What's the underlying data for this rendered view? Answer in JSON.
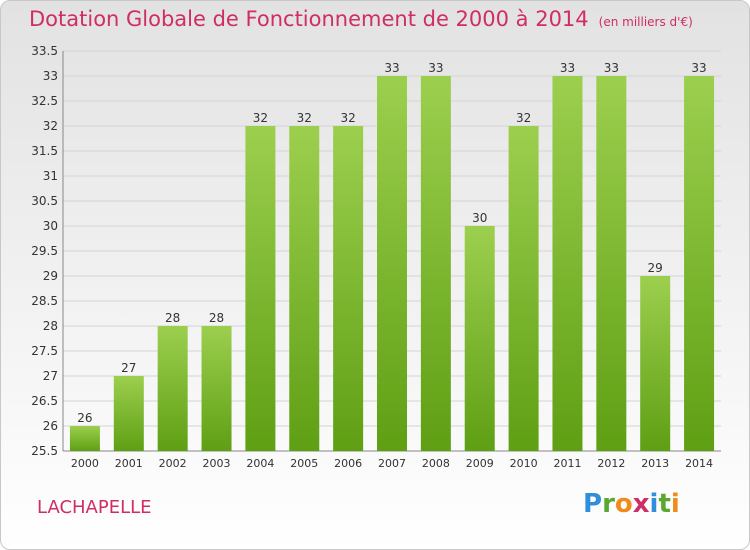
{
  "title": "Dotation Globale de Fonctionnement de 2000 à 2014",
  "unit": "(en milliers d'€)",
  "footer": "LACHAPELLE",
  "logo": {
    "letters": [
      "P",
      "r",
      "o",
      "x",
      "i",
      "t",
      "i"
    ],
    "colors": [
      "#2f8fd8",
      "#5aa832",
      "#f08b1c",
      "#d02c66",
      "#2f8fd8",
      "#5aa832",
      "#f08b1c"
    ]
  },
  "colors": {
    "title": "#d02c66",
    "bar_light": "#9ccf4e",
    "bar_dark": "#5f9f14",
    "grid": "#d4d4d4",
    "text": "#333333"
  },
  "chart_data": {
    "type": "bar",
    "categories": [
      "2000",
      "2001",
      "2002",
      "2003",
      "2004",
      "2005",
      "2006",
      "2007",
      "2008",
      "2009",
      "2010",
      "2011",
      "2012",
      "2013",
      "2014"
    ],
    "values": [
      26,
      27,
      28,
      28,
      32,
      32,
      32,
      33,
      33,
      30,
      32,
      33,
      33,
      29,
      33
    ],
    "ylim": [
      25.5,
      33.5
    ],
    "yticks": [
      "25.5",
      "26",
      "26.5",
      "27",
      "27.5",
      "28",
      "28.5",
      "29",
      "29.5",
      "30",
      "30.5",
      "31",
      "31.5",
      "32",
      "32.5",
      "33",
      "33.5"
    ],
    "grid": true
  }
}
